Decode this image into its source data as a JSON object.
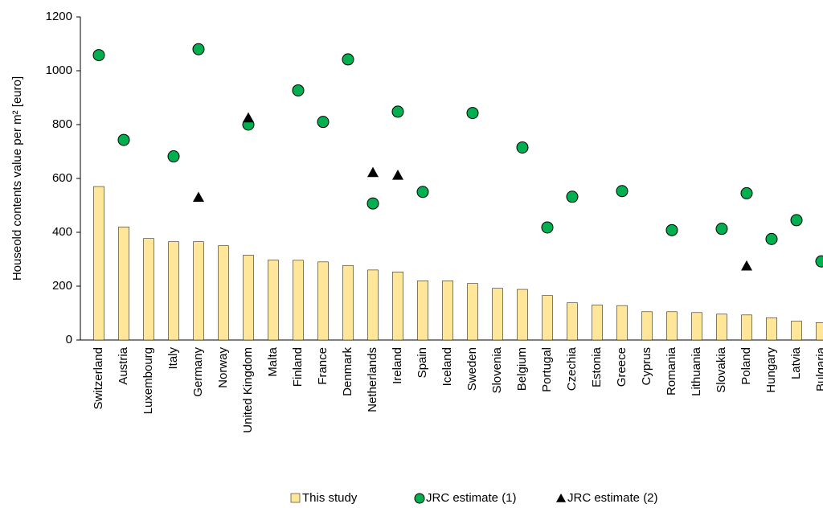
{
  "chart_data": {
    "type": "bar_scatter",
    "y_label": "Houseold contents value per m² [euro]",
    "categories": [
      "Switzerland",
      "Austria",
      "Luxembourg",
      "Italy",
      "Germany",
      "Norway",
      "United Kingdom",
      "Malta",
      "Finland",
      "France",
      "Denmark",
      "Netherlands",
      "Ireland",
      "Spain",
      "Iceland",
      "Sweden",
      "Slovenia",
      "Belgium",
      "Portugal",
      "Czechia",
      "Estonia",
      "Greece",
      "Cyprus",
      "Romania",
      "Lithuania",
      "Slovakia",
      "Poland",
      "Hungary",
      "Latvia",
      "Bulgaria"
    ],
    "series": [
      {
        "name": "This study",
        "color": "#ffe699",
        "type": "bar",
        "values": [
          570,
          420,
          377,
          365,
          365,
          350,
          315,
          297,
          296,
          290,
          277,
          260,
          253,
          220,
          220,
          210,
          192,
          188,
          165,
          138,
          130,
          128,
          105,
          105,
          102,
          96,
          93,
          83,
          70,
          65
        ]
      },
      {
        "name": "JRC estimate (1)",
        "color": "#00b050",
        "type": "circle",
        "values": [
          1058,
          743,
          null,
          682,
          1080,
          null,
          800,
          null,
          927,
          810,
          1042,
          507,
          848,
          550,
          null,
          843,
          null,
          715,
          418,
          532,
          null,
          553,
          null,
          408,
          null,
          413,
          545,
          375,
          445,
          292
        ]
      },
      {
        "name": "JRC estimate (2)",
        "color": "#000000",
        "type": "triangle",
        "values": [
          null,
          null,
          null,
          null,
          530,
          null,
          825,
          null,
          null,
          null,
          null,
          622,
          612,
          null,
          null,
          null,
          null,
          null,
          null,
          null,
          null,
          null,
          null,
          null,
          null,
          null,
          275,
          null,
          null,
          null
        ]
      }
    ],
    "ylim": [
      0,
      1200
    ],
    "yticks": [
      0,
      200,
      400,
      600,
      800,
      1000,
      1200
    ]
  }
}
